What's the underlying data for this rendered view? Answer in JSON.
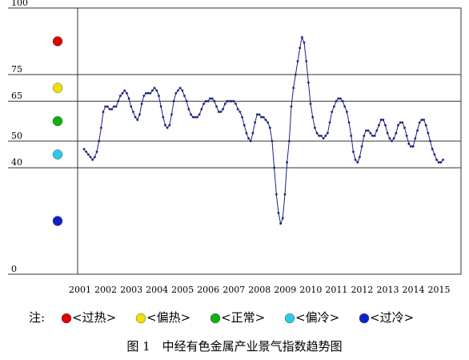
{
  "chart_data": {
    "type": "line",
    "title": "图 1　中经有色金属产业景气指数趋势图",
    "legend_label": "注:",
    "zones": [
      {
        "name": "<过热>",
        "color": "#e00000"
      },
      {
        "name": "<偏热>",
        "color": "#f0e000"
      },
      {
        "name": "<正常>",
        "color": "#10b010"
      },
      {
        "name": "<偏冷>",
        "color": "#30c8e8"
      },
      {
        "name": "<过冷>",
        "color": "#1020c8"
      }
    ],
    "categories": [
      "2001",
      null,
      null,
      null,
      null,
      null,
      null,
      null,
      null,
      null,
      null,
      null,
      "2002",
      null,
      null,
      null,
      null,
      null,
      null,
      null,
      null,
      null,
      null,
      null,
      "2003",
      null,
      null,
      null,
      null,
      null,
      null,
      null,
      null,
      null,
      null,
      null,
      "2004",
      null,
      null,
      null,
      null,
      null,
      null,
      null,
      null,
      null,
      null,
      null,
      "2005",
      null,
      null,
      null,
      null,
      null,
      null,
      null,
      null,
      null,
      null,
      null,
      "2006",
      null,
      null,
      null,
      null,
      null,
      null,
      null,
      null,
      null,
      null,
      null,
      "2007",
      null,
      null,
      null,
      null,
      null,
      null,
      null,
      null,
      null,
      null,
      null,
      "2008",
      null,
      null,
      null,
      null,
      null,
      null,
      null,
      null,
      null,
      null,
      null,
      "2009",
      null,
      null,
      null,
      null,
      null,
      null,
      null,
      null,
      null,
      null,
      null,
      "2010",
      null,
      null,
      null,
      null,
      null,
      null,
      null,
      null,
      null,
      null,
      null,
      "2011",
      null,
      null,
      null,
      null,
      null,
      null,
      null,
      null,
      null,
      null,
      null,
      "2012",
      null,
      null,
      null,
      null,
      null,
      null,
      null,
      null,
      null,
      null,
      null,
      "2013",
      null,
      null,
      null,
      null,
      null,
      null,
      null,
      null,
      null,
      null,
      null,
      "2014",
      null,
      null,
      null,
      null,
      null,
      null,
      null,
      null,
      null,
      null,
      null,
      "2015"
    ],
    "series": [
      {
        "color": "#1a237e",
        "values": [
          47,
          46,
          45,
          44,
          43,
          44,
          46,
          50,
          55,
          61,
          63,
          63,
          62,
          62,
          63,
          63,
          65,
          67,
          68,
          69,
          68,
          66,
          63,
          61,
          59,
          58,
          60,
          64,
          67,
          68,
          68,
          68,
          69,
          70,
          69,
          67,
          63,
          59,
          56,
          55,
          56,
          60,
          65,
          68,
          69,
          70,
          69,
          67,
          65,
          62,
          60,
          59,
          59,
          59,
          60,
          62,
          64,
          65,
          65,
          66,
          66,
          65,
          63,
          61,
          61,
          62,
          64,
          65,
          65,
          65,
          65,
          64,
          62,
          61,
          59,
          56,
          53,
          51,
          50,
          53,
          57,
          60,
          60,
          59,
          59,
          58,
          57,
          55,
          50,
          40,
          30,
          23,
          19,
          21,
          30,
          42,
          50,
          63,
          70,
          75,
          80,
          85,
          89,
          87,
          80,
          72,
          64,
          59,
          55,
          53,
          52,
          52,
          51,
          52,
          53,
          57,
          61,
          63,
          65,
          66,
          66,
          65,
          63,
          61,
          57,
          52,
          46,
          43,
          42,
          44,
          48,
          52,
          54,
          54,
          53,
          52,
          52,
          54,
          56,
          58,
          58,
          56,
          53,
          51,
          50,
          51,
          53,
          56,
          57,
          57,
          55,
          52,
          49,
          48,
          48,
          51,
          54,
          57,
          58,
          58,
          56,
          53,
          50,
          47,
          45,
          43,
          42,
          42,
          43
        ]
      }
    ],
    "ylim": [
      0,
      100
    ],
    "yticks": [
      0,
      40,
      50,
      65,
      75,
      100
    ]
  }
}
